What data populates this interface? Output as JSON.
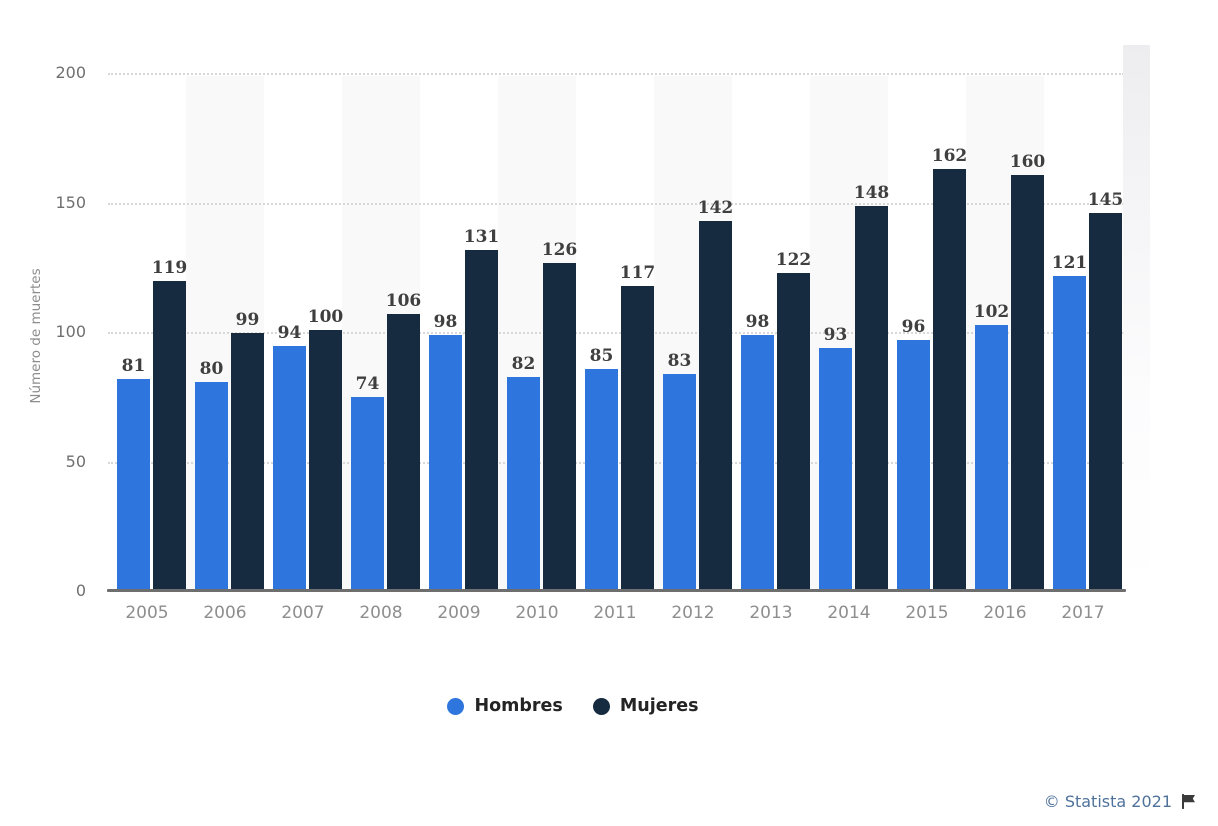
{
  "chart_data": {
    "type": "bar",
    "title": "",
    "categories": [
      "2005",
      "2006",
      "2007",
      "2008",
      "2009",
      "2010",
      "2011",
      "2012",
      "2013",
      "2014",
      "2015",
      "2016",
      "2017"
    ],
    "series": [
      {
        "name": "Hombres",
        "color": "#2e76dd",
        "values": [
          81,
          80,
          94,
          74,
          98,
          82,
          85,
          83,
          98,
          93,
          96,
          102,
          121
        ]
      },
      {
        "name": "Mujeres",
        "color": "#162a40",
        "values": [
          119,
          99,
          100,
          106,
          131,
          126,
          117,
          142,
          122,
          148,
          162,
          160,
          145
        ]
      }
    ],
    "xlabel": "",
    "ylabel": "Número de muertes",
    "ylim": [
      0,
      200
    ],
    "yticks": [
      0,
      50,
      100,
      150,
      200
    ],
    "grid": "horizontal-dotted",
    "gridline_color": "#d8d8d8",
    "plot_stripes": "alternating-vertical",
    "stripe_color": "#f9f9fa",
    "value_labels": "above-bars",
    "value_label_color": "#3f3f3f",
    "axis_color": "#6e6e6e",
    "tick_label_color": "#6f6f6f",
    "legend_position": "bottom-center"
  },
  "footer": {
    "copyright": "© Statista 2021",
    "copyright_color": "#4f729b",
    "flag_icon": "flag-icon",
    "flag_color": "#3b3b3b"
  }
}
